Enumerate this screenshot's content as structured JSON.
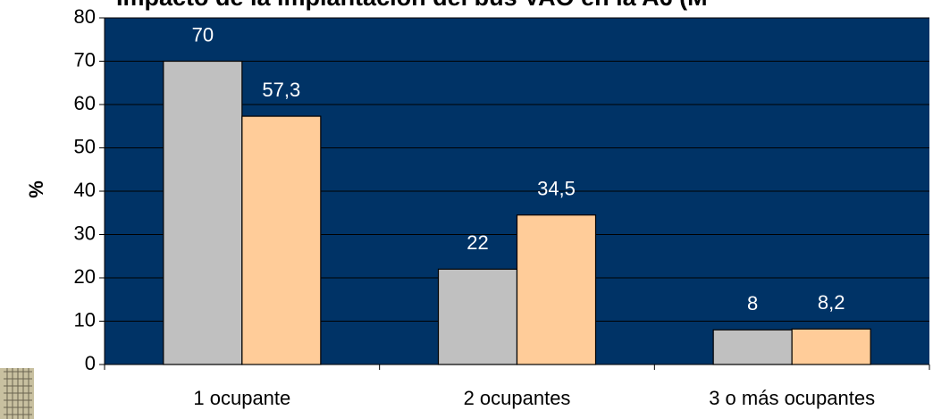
{
  "chart_data": {
    "type": "bar",
    "title": "Impacto de la implantación del bus VAO en la A6 (M",
    "y_label": "%",
    "categories": [
      "1 ocupante",
      "2 ocupantes",
      "3 o más ocupantes"
    ],
    "series": [
      {
        "color": "#c0c0c0",
        "values": [
          70,
          22,
          8
        ]
      },
      {
        "color": "#ffcc99",
        "values": [
          57.3,
          34.5,
          8.2
        ],
        "value_labels": [
          "57,3",
          "34,5",
          "8,2"
        ]
      }
    ],
    "ylim": [
      0,
      80
    ],
    "yticks": [
      0,
      10,
      20,
      30,
      40,
      50,
      60,
      70,
      80
    ],
    "grid": true,
    "plot_background": "#003366"
  }
}
